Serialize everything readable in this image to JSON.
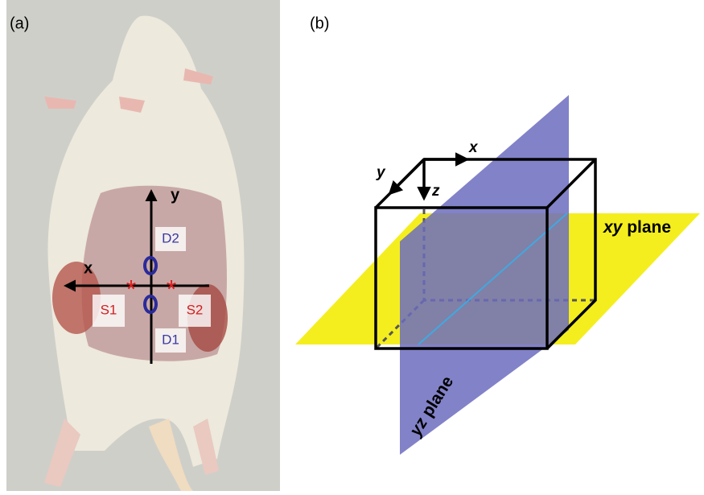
{
  "panel_a": {
    "label": "(a)",
    "axes": {
      "x": "x",
      "y": "y"
    },
    "markers": {
      "D2": "D2",
      "S1": "S1",
      "S2": "S2",
      "D1": "D1"
    }
  },
  "panel_b": {
    "label": "(b)",
    "axes": {
      "x": "x",
      "y": "y",
      "z": "z"
    },
    "planes": [
      {
        "italic": "xy",
        "text": "plane"
      },
      {
        "italic": "yz",
        "text": "plane"
      }
    ]
  }
}
